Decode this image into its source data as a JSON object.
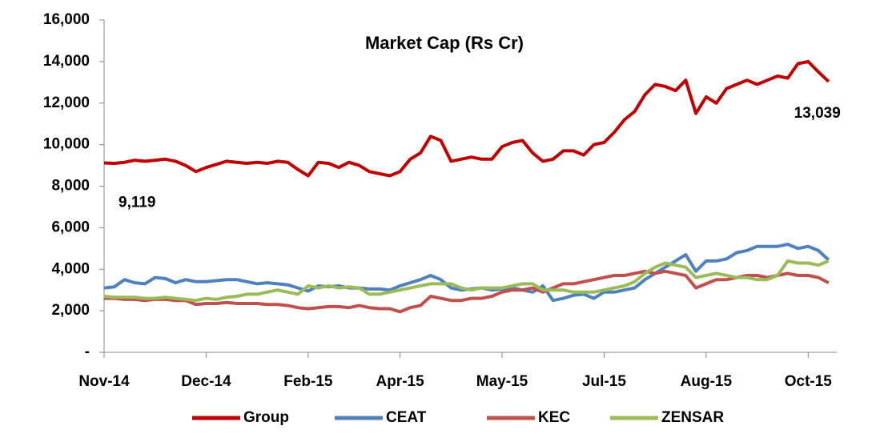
{
  "chart_data": {
    "type": "line",
    "title": "Market Cap (Rs Cr)",
    "categories": [
      "Nov-14",
      null,
      null,
      null,
      null,
      null,
      null,
      null,
      null,
      null,
      "Dec-14",
      null,
      null,
      null,
      null,
      null,
      null,
      null,
      null,
      null,
      "Feb-15",
      null,
      null,
      null,
      null,
      null,
      null,
      null,
      null,
      "Apr-15",
      null,
      null,
      null,
      null,
      null,
      null,
      null,
      null,
      null,
      "May-15",
      null,
      null,
      null,
      null,
      null,
      null,
      null,
      null,
      null,
      "Jul-15",
      null,
      null,
      null,
      null,
      null,
      null,
      null,
      null,
      null,
      "Aug-15",
      null,
      null,
      null,
      null,
      null,
      null,
      null,
      null,
      null,
      "Oct-15",
      null,
      null
    ],
    "series": [
      {
        "name": "Group",
        "color": "#c00000",
        "values": [
          9119,
          9100,
          9150,
          9250,
          9200,
          9250,
          9300,
          9200,
          9000,
          8700,
          8900,
          9050,
          9200,
          9150,
          9100,
          9150,
          9100,
          9200,
          9150,
          8800,
          8500,
          9150,
          9100,
          8900,
          9150,
          9000,
          8700,
          8600,
          8500,
          8700,
          9300,
          9600,
          10400,
          10200,
          9200,
          9300,
          9400,
          9300,
          9300,
          9900,
          10100,
          10200,
          9600,
          9200,
          9300,
          9700,
          9700,
          9500,
          10000,
          10100,
          10600,
          11200,
          11600,
          12400,
          12900,
          12800,
          12600,
          13100,
          11500,
          12300,
          12000,
          12700,
          12900,
          13100,
          12900,
          13100,
          13300,
          13200,
          13900,
          14000,
          13500,
          13039
        ]
      },
      {
        "name": "CEAT",
        "color": "#4f81bd",
        "values": [
          3100,
          3150,
          3500,
          3350,
          3300,
          3600,
          3550,
          3350,
          3500,
          3400,
          3400,
          3450,
          3500,
          3500,
          3400,
          3300,
          3350,
          3300,
          3250,
          3100,
          2950,
          3200,
          3150,
          3200,
          3100,
          3100,
          3050,
          3050,
          3000,
          3200,
          3350,
          3500,
          3700,
          3500,
          3100,
          3000,
          3050,
          3100,
          3000,
          3050,
          3100,
          3000,
          2900,
          3200,
          2500,
          2600,
          2750,
          2800,
          2600,
          2900,
          2900,
          3000,
          3100,
          3500,
          3800,
          4100,
          4400,
          4700,
          3900,
          4400,
          4400,
          4500,
          4800,
          4900,
          5100,
          5100,
          5100,
          5200,
          5000,
          5100,
          4900,
          4450
        ]
      },
      {
        "name": "KEC",
        "color": "#c0504d",
        "values": [
          2600,
          2600,
          2550,
          2550,
          2500,
          2550,
          2550,
          2500,
          2500,
          2300,
          2350,
          2350,
          2400,
          2350,
          2350,
          2350,
          2300,
          2300,
          2250,
          2150,
          2100,
          2150,
          2200,
          2200,
          2150,
          2250,
          2150,
          2100,
          2100,
          1950,
          2150,
          2250,
          2700,
          2600,
          2500,
          2500,
          2600,
          2600,
          2700,
          2900,
          3000,
          3000,
          3100,
          2900,
          3100,
          3300,
          3300,
          3400,
          3500,
          3600,
          3700,
          3700,
          3800,
          3900,
          3800,
          3900,
          3800,
          3700,
          3100,
          3300,
          3500,
          3500,
          3600,
          3700,
          3700,
          3600,
          3700,
          3800,
          3700,
          3700,
          3600,
          3350
        ]
      },
      {
        "name": "ZENSAR",
        "color": "#9bbb59",
        "values": [
          2700,
          2650,
          2650,
          2650,
          2600,
          2600,
          2650,
          2600,
          2550,
          2500,
          2600,
          2550,
          2650,
          2700,
          2800,
          2800,
          2900,
          3000,
          2900,
          2800,
          3200,
          3100,
          3200,
          3100,
          3150,
          3100,
          2800,
          2800,
          2900,
          3000,
          3100,
          3200,
          3300,
          3300,
          3300,
          3100,
          3000,
          3100,
          3100,
          3100,
          3200,
          3300,
          3300,
          3000,
          3000,
          3000,
          2900,
          2900,
          2900,
          3000,
          3100,
          3200,
          3400,
          3800,
          4100,
          4300,
          4200,
          4100,
          3600,
          3700,
          3800,
          3700,
          3600,
          3600,
          3500,
          3500,
          3700,
          4400,
          4300,
          4300,
          4200,
          4400
        ]
      }
    ],
    "ylim": [
      0,
      16000
    ],
    "yticks": [
      {
        "value": 0,
        "label": "-"
      },
      {
        "value": 2000,
        "label": "2,000"
      },
      {
        "value": 4000,
        "label": "4,000"
      },
      {
        "value": 6000,
        "label": "6,000"
      },
      {
        "value": 8000,
        "label": "8,000"
      },
      {
        "value": 10000,
        "label": "10,000"
      },
      {
        "value": 12000,
        "label": "12,000"
      },
      {
        "value": 14000,
        "label": "14,000"
      },
      {
        "value": 16000,
        "label": "16,000"
      }
    ],
    "annotations": [
      {
        "text": "9,119"
      },
      {
        "text": "13,039"
      }
    ],
    "legend": "bottom",
    "grid": false
  }
}
